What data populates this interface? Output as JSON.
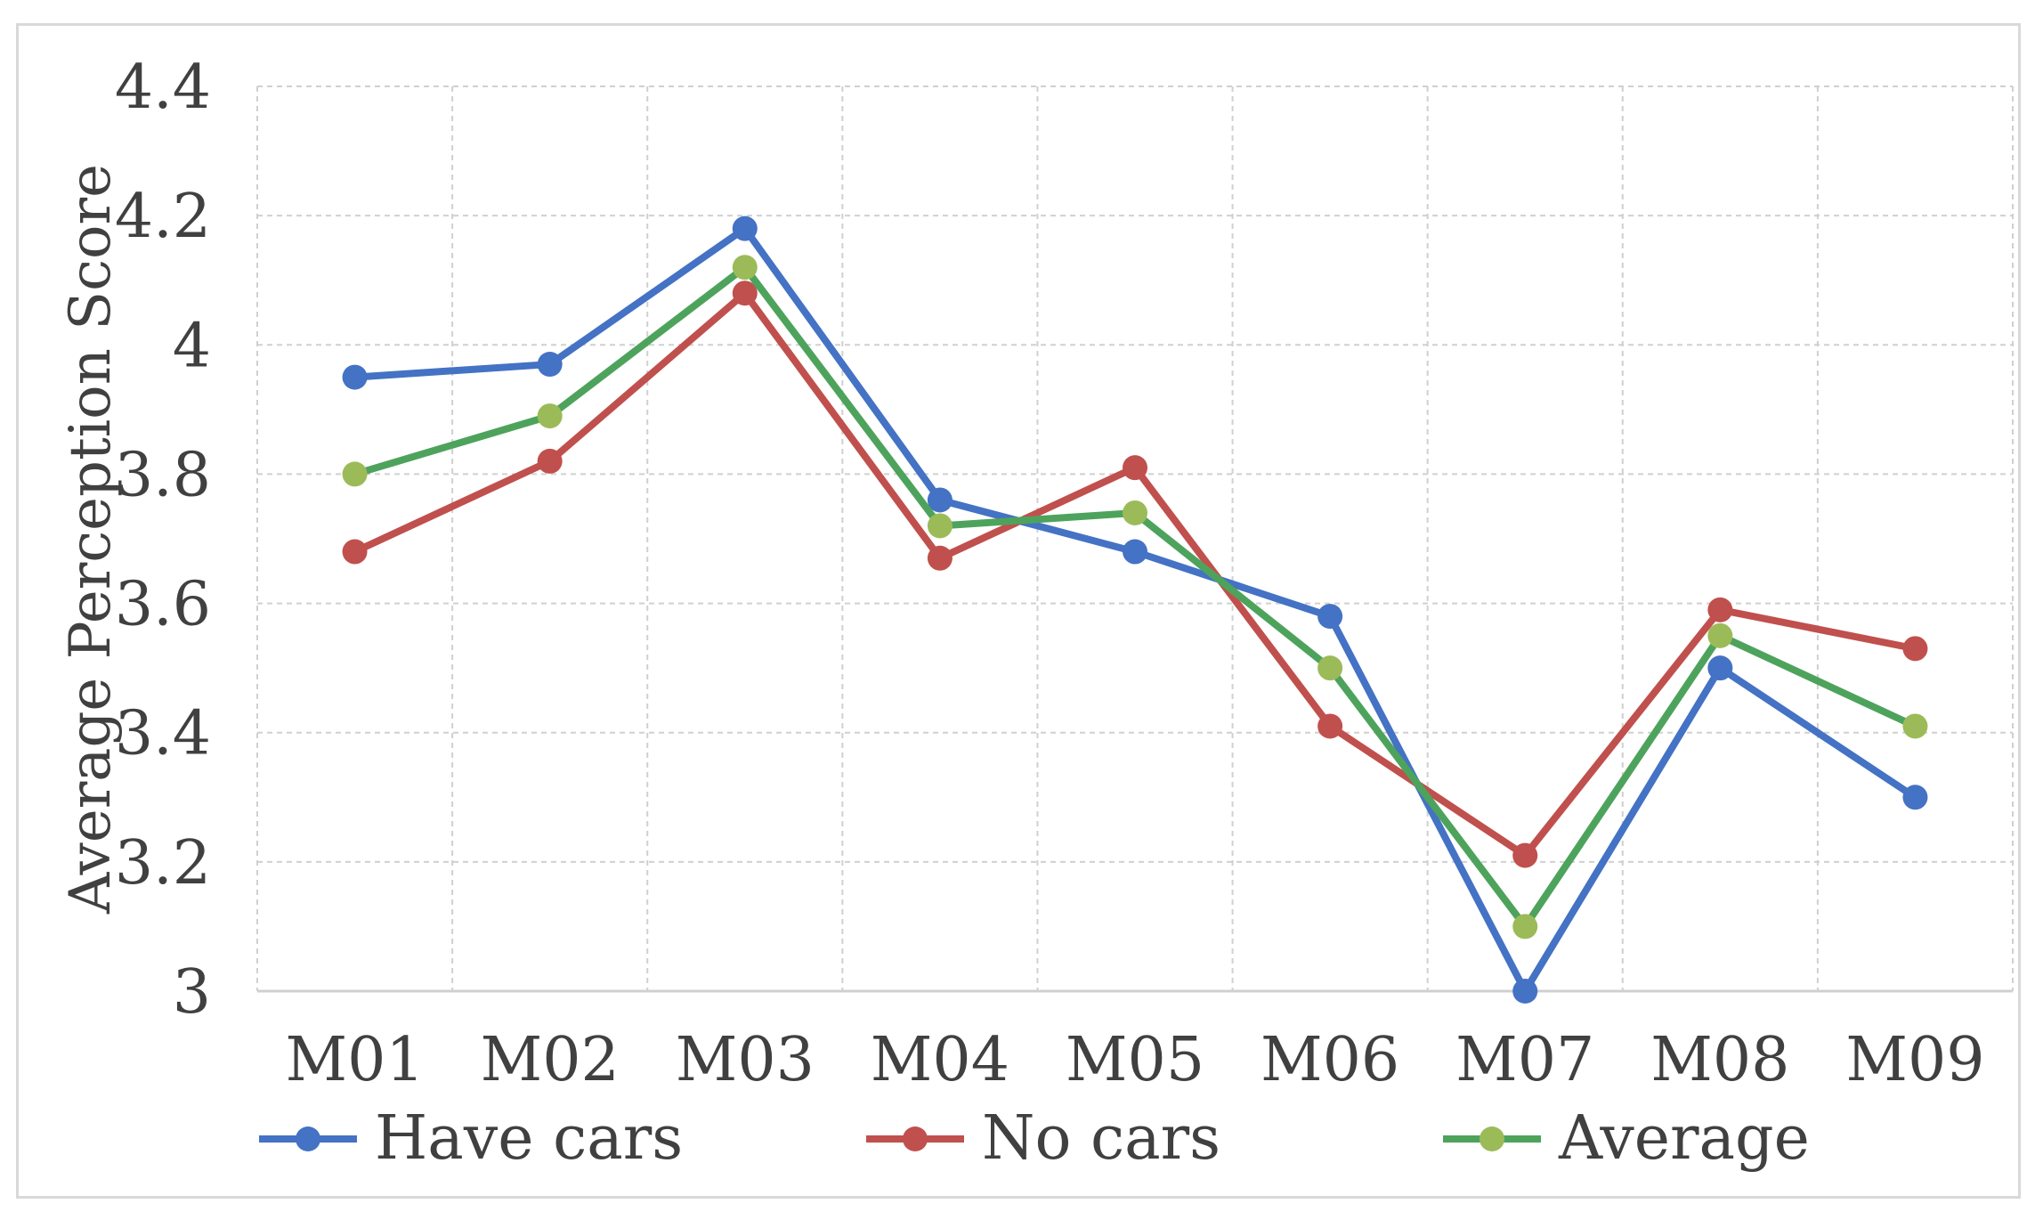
{
  "chart_data": {
    "type": "line",
    "title": "",
    "xlabel": "",
    "ylabel": "Average Perception Score",
    "categories": [
      "M01",
      "M02",
      "M03",
      "M04",
      "M05",
      "M06",
      "M07",
      "M08",
      "M09"
    ],
    "ylim": [
      3,
      4.4
    ],
    "yticks": [
      3,
      3.2,
      3.4,
      3.6,
      3.8,
      4,
      4.2,
      4.4
    ],
    "ytick_labels": [
      "3",
      "3.2",
      "3.4",
      "3.6",
      "3.8",
      "4",
      "4.2",
      "4.4"
    ],
    "grid": true,
    "legend_position": "bottom",
    "series": [
      {
        "name": "Have cars",
        "color": "#4472c4",
        "values": [
          3.95,
          3.97,
          4.18,
          3.76,
          3.68,
          3.58,
          3.0,
          3.5,
          3.3
        ]
      },
      {
        "name": "No cars",
        "color": "#c0504d",
        "values": [
          3.68,
          3.82,
          4.08,
          3.67,
          3.81,
          3.41,
          3.21,
          3.59,
          3.53
        ]
      },
      {
        "name": "Average",
        "color": "#4ea35c",
        "marker_color": "#9bbb59",
        "values": [
          3.8,
          3.89,
          4.12,
          3.72,
          3.74,
          3.5,
          3.1,
          3.55,
          3.41
        ]
      }
    ]
  }
}
